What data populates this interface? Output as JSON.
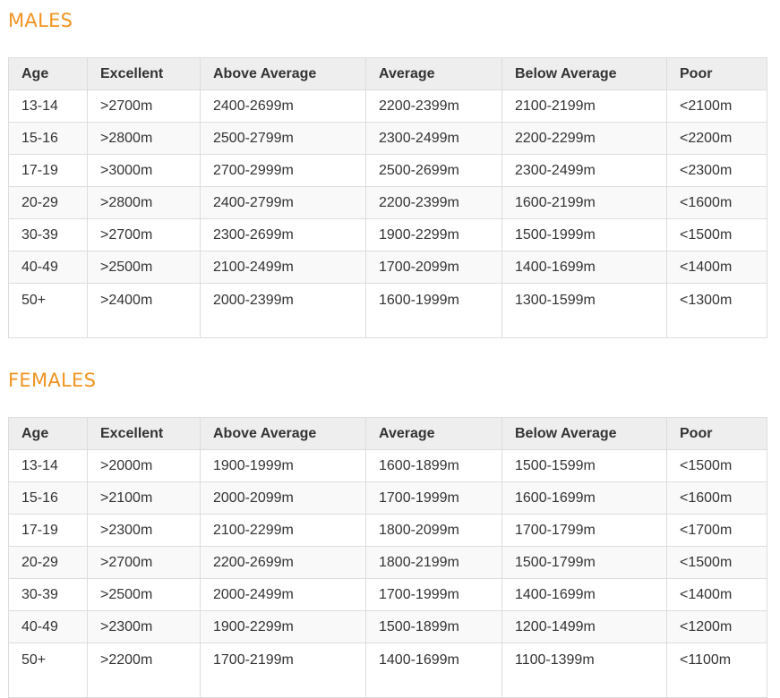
{
  "columns": [
    "Age",
    "Excellent",
    "Above Average",
    "Average",
    "Below Average",
    "Poor"
  ],
  "sections": [
    {
      "title": "MALES",
      "rows": [
        [
          "13-14",
          ">2700m",
          "2400-2699m",
          "2200-2399m",
          "2100-2199m",
          "<2100m"
        ],
        [
          "15-16",
          ">2800m",
          "2500-2799m",
          "2300-2499m",
          "2200-2299m",
          "<2200m"
        ],
        [
          "17-19",
          ">3000m",
          "2700-2999m",
          "2500-2699m",
          "2300-2499m",
          "<2300m"
        ],
        [
          "20-29",
          ">2800m",
          "2400-2799m",
          "2200-2399m",
          "1600-2199m",
          "<1600m"
        ],
        [
          "30-39",
          ">2700m",
          "2300-2699m",
          "1900-2299m",
          "1500-1999m",
          "<1500m"
        ],
        [
          "40-49",
          ">2500m",
          "2100-2499m",
          "1700-2099m",
          "1400-1699m",
          "<1400m"
        ],
        [
          "50+",
          ">2400m",
          "2000-2399m",
          "1600-1999m",
          "1300-1599m",
          "<1300m"
        ]
      ]
    },
    {
      "title": "FEMALES",
      "rows": [
        [
          "13-14",
          ">2000m",
          "1900-1999m",
          "1600-1899m",
          "1500-1599m",
          "<1500m"
        ],
        [
          "15-16",
          ">2100m",
          "2000-2099m",
          "1700-1999m",
          "1600-1699m",
          "<1600m"
        ],
        [
          "17-19",
          ">2300m",
          "2100-2299m",
          "1800-2099m",
          "1700-1799m",
          "<1700m"
        ],
        [
          "20-29",
          ">2700m",
          "2200-2699m",
          "1800-2199m",
          "1500-1799m",
          "<1500m"
        ],
        [
          "30-39",
          ">2500m",
          "2000-2499m",
          "1700-1999m",
          "1400-1699m",
          "<1400m"
        ],
        [
          "40-49",
          ">2300m",
          "1900-2299m",
          "1500-1899m",
          "1200-1499m",
          "<1200m"
        ],
        [
          "50+",
          ">2200m",
          "1700-2199m",
          "1400-1699m",
          "1100-1399m",
          "<1100m"
        ]
      ]
    }
  ]
}
